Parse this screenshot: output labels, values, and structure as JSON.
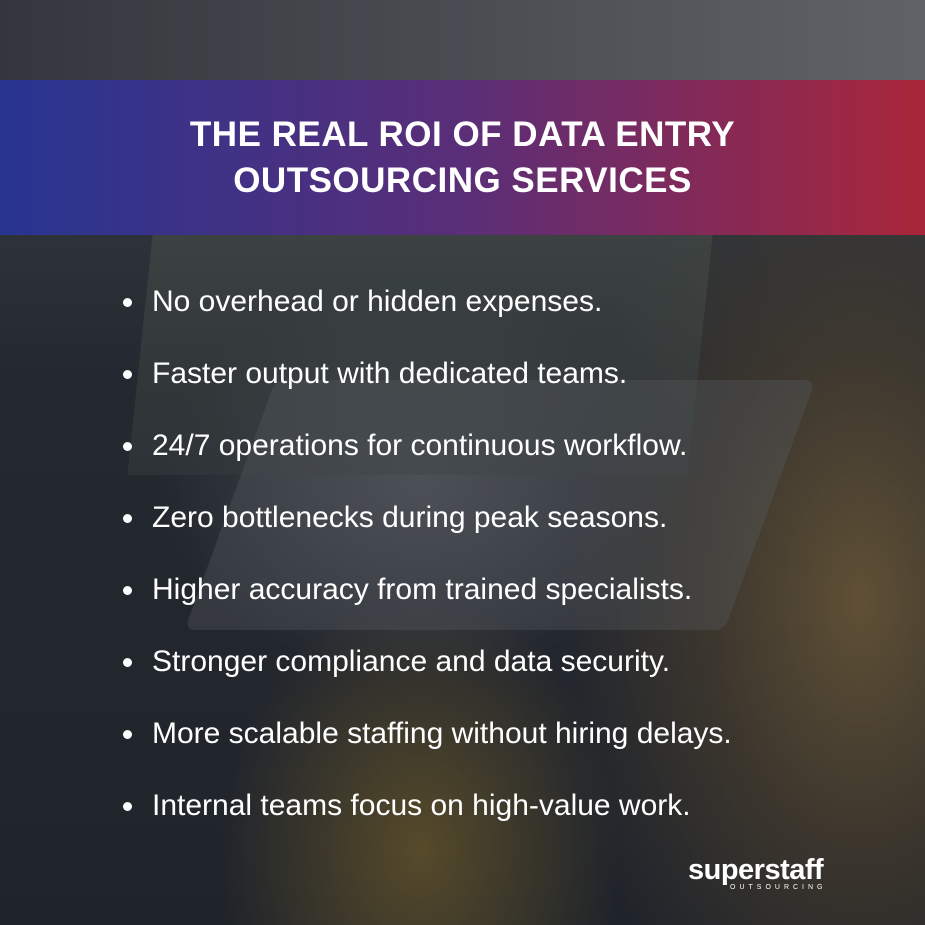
{
  "title": "THE REAL ROI OF DATA ENTRY OUTSOURCING SERVICES",
  "items": [
    "No overhead or hidden expenses.",
    "Faster output with dedicated teams.",
    "24/7 operations for continuous workflow.",
    "Zero bottlenecks during peak seasons.",
    "Higher accuracy from trained specialists.",
    "Stronger compliance and data security.",
    "More scalable staffing without hiring delays.",
    "Internal teams focus on high-value work."
  ],
  "logo": {
    "name": "superstaff",
    "tagline": "OUTSOURCING"
  },
  "colors": {
    "banner_start": "#273591",
    "banner_end": "#a9263a"
  }
}
